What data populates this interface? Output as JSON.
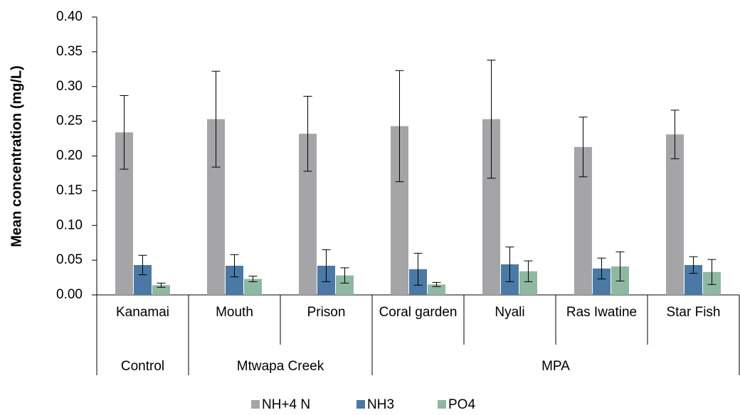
{
  "chart_data": {
    "type": "bar",
    "y_label": "Mean concentration  (mg/L)",
    "groups": [
      {
        "name": "Control",
        "categories": [
          "Kanamai"
        ]
      },
      {
        "name": "Mtwapa Creek",
        "categories": [
          "Mouth",
          "Prison"
        ]
      },
      {
        "name": "MPA",
        "categories": [
          "Coral garden",
          "Nyali",
          "Ras Iwatine",
          "Star Fish"
        ]
      }
    ],
    "series": [
      {
        "name": "NH+4 N",
        "color": "#a5a5a8",
        "values": [
          0.234,
          0.253,
          0.232,
          0.243,
          0.253,
          0.213,
          0.231
        ],
        "errors": [
          0.053,
          0.069,
          0.054,
          0.08,
          0.085,
          0.043,
          0.035
        ]
      },
      {
        "name": "NH3",
        "color": "#4a79a5",
        "values": [
          0.043,
          0.042,
          0.042,
          0.037,
          0.044,
          0.038,
          0.043
        ],
        "errors": [
          0.014,
          0.016,
          0.023,
          0.023,
          0.025,
          0.015,
          0.012
        ]
      },
      {
        "name": "PO4",
        "color": "#8fb8a0",
        "values": [
          0.014,
          0.023,
          0.028,
          0.015,
          0.034,
          0.041,
          0.033
        ],
        "errors": [
          0.003,
          0.004,
          0.011,
          0.003,
          0.015,
          0.021,
          0.018
        ]
      }
    ],
    "ylim": [
      0,
      0.4
    ],
    "yticks": [
      {
        "value": 0,
        "label": "0.00"
      },
      0.05,
      {
        "value": 0.1,
        "label": "0.10"
      },
      0.15,
      {
        "value": 0.2,
        "label": "0.20"
      },
      0.25,
      {
        "value": 0.3,
        "label": "0.30"
      },
      0.35,
      {
        "value": 0.4,
        "label": "0.40"
      }
    ],
    "legend": "bottom"
  }
}
